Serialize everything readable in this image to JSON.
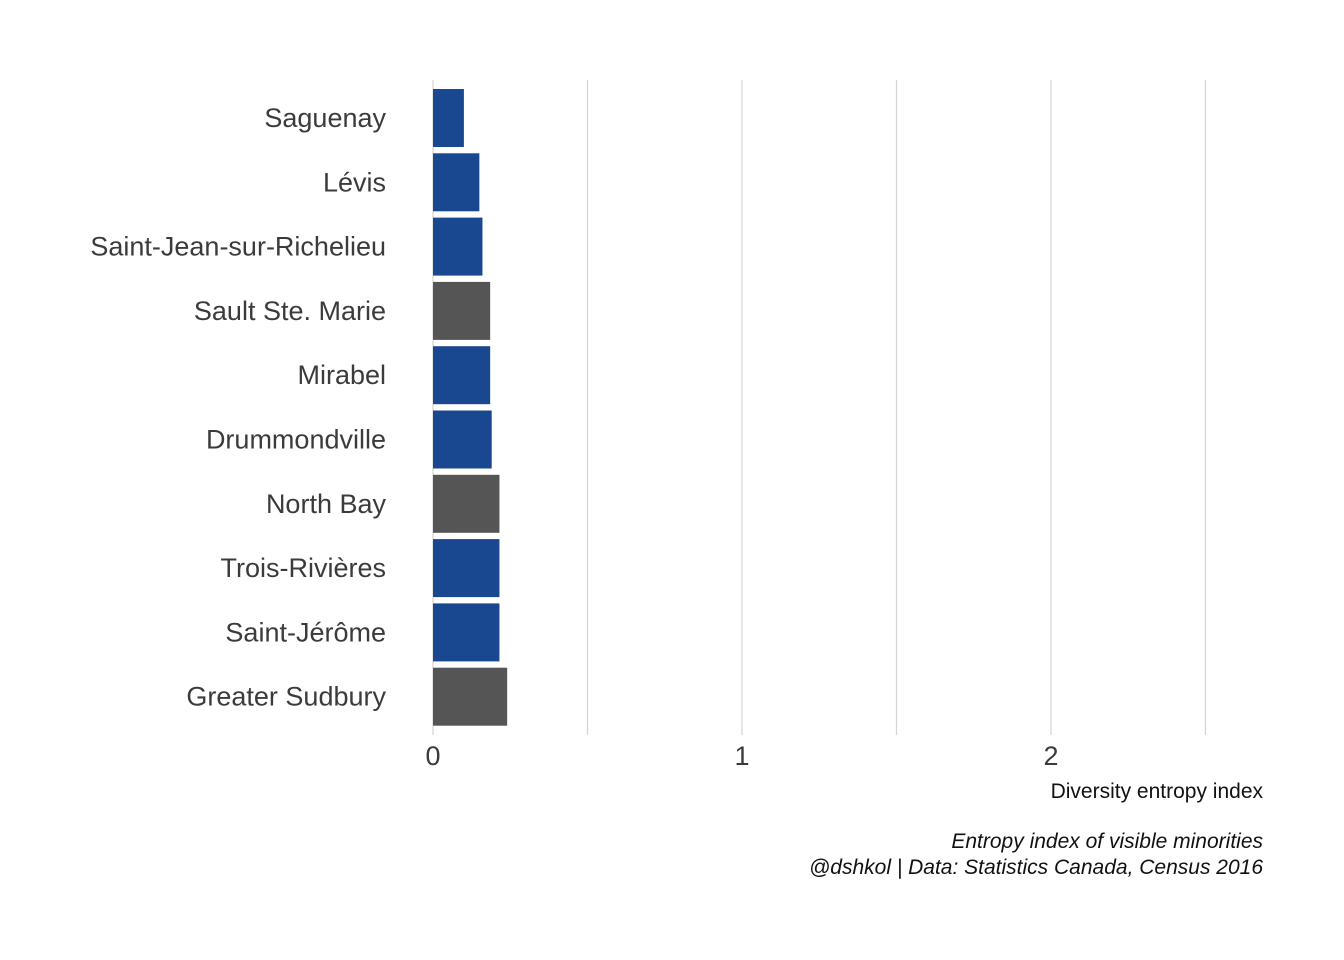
{
  "chart_data": {
    "type": "bar",
    "orientation": "horizontal",
    "categories": [
      "Saguenay",
      "Lévis",
      "Saint-Jean-sur-Richelieu",
      "Sault Ste. Marie",
      "Mirabel",
      "Drummondville",
      "North Bay",
      "Trois-Rivières",
      "Saint-Jérôme",
      "Greater Sudbury"
    ],
    "values": [
      0.1,
      0.15,
      0.16,
      0.185,
      0.185,
      0.19,
      0.215,
      0.215,
      0.215,
      0.24
    ],
    "bar_colors": [
      "#1a4890",
      "#1a4890",
      "#1a4890",
      "#555555",
      "#1a4890",
      "#1a4890",
      "#555555",
      "#1a4890",
      "#1a4890",
      "#555555"
    ],
    "xlim": [
      0,
      2.7
    ],
    "xticks": [
      0,
      1,
      2
    ],
    "xtick_labels": [
      "0",
      "1",
      "2"
    ],
    "minor_gridlines": [
      0.5,
      1.5,
      2.5
    ],
    "grid": "vertical",
    "xlabel": "Diversity entropy index",
    "caption_line1": "Entropy index of visible minorities",
    "caption_line2": "@dshkol | Data: Statistics Canada, Census 2016"
  }
}
